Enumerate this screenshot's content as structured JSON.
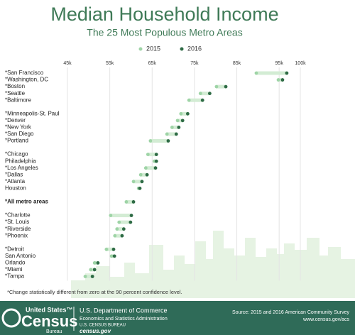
{
  "chart_data": {
    "type": "dumbbell",
    "title": "Median Household Income",
    "subtitle": "The 25 Most Populous Metro Areas",
    "categories": [
      "*San Francisco",
      "*Washington, DC",
      "*Boston",
      "*Seattle",
      "*Baltimore",
      null,
      "*Minneapolis-St. Paul",
      "*Denver",
      "*New York",
      "*San Diego",
      "*Portland",
      null,
      "*Chicago",
      "Philadelphia",
      "*Los Angeles",
      "*Dallas",
      "*Atlanta",
      "Houston",
      null,
      "*All metro areas",
      null,
      "*Charlotte",
      "*St. Louis",
      "*Riverside",
      "*Phoenix",
      null,
      "*Detroit",
      "San Antonio",
      "Orlando",
      "*Miami",
      "*Tampa"
    ],
    "series": [
      {
        "name": "2015",
        "color": "#9ed4a6",
        "values": [
          89600,
          94800,
          80200,
          76400,
          73700,
          null,
          71800,
          71000,
          69700,
          68500,
          64600,
          null,
          64000,
          65500,
          63500,
          62300,
          60600,
          61800,
          null,
          58900,
          null,
          55200,
          57200,
          56700,
          56200,
          null,
          54200,
          55400,
          51400,
          50500,
          49200
        ]
      },
      {
        "name": "2016",
        "color": "#2e6b45",
        "values": [
          96800,
          95800,
          82400,
          78600,
          76900,
          null,
          73400,
          72200,
          71300,
          70700,
          68800,
          null,
          66000,
          66000,
          65800,
          63800,
          62600,
          62100,
          null,
          60600,
          null,
          60100,
          59900,
          58300,
          57900,
          null,
          55900,
          56100,
          52200,
          51400,
          50900
        ]
      }
    ],
    "bold_category": "*All metro areas",
    "range_color": "#d3ecd4",
    "xlim": [
      45000,
      100000
    ],
    "xticks": [
      {
        "value": 45000,
        "label": "45k"
      },
      {
        "value": 55000,
        "label": "55k"
      },
      {
        "value": 65000,
        "label": "65k"
      },
      {
        "value": 75000,
        "label": "75k"
      },
      {
        "value": 85000,
        "label": "85k"
      },
      {
        "value": 95000,
        "label": "95k"
      },
      {
        "value": 100000,
        "label": "100k"
      }
    ],
    "grid": true,
    "footnote": "*Change statistically different from zero at the 90 percent confidence level."
  },
  "footer": {
    "logo_top": "United States™",
    "logo_main": "Census",
    "logo_bottom": "Bureau",
    "dept": "U.S. Department of Commerce",
    "admin": "Economics and Statistics Administration",
    "bureau": "U.S. CENSUS BUREAU",
    "site": "census.gov",
    "source": "Source: 2015 and 2016 American Community Survey",
    "source_url": "www.census.gov/acs"
  }
}
